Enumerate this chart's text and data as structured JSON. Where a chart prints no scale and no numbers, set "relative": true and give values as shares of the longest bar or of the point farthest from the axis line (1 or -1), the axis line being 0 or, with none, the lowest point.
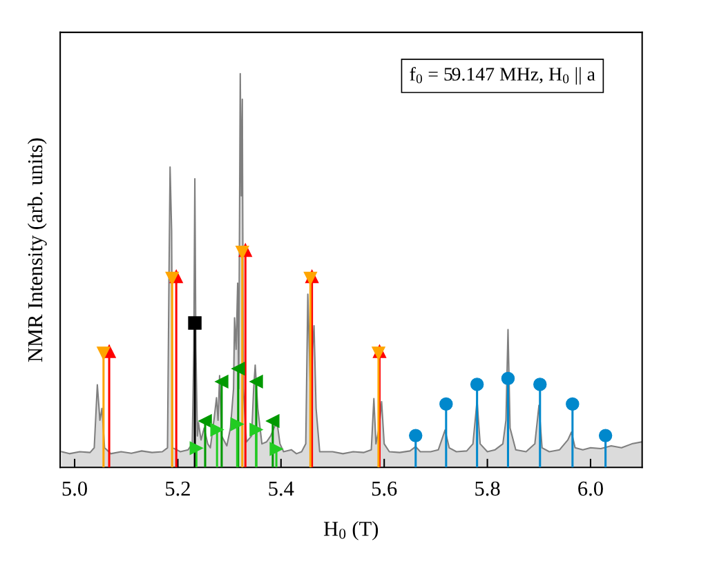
{
  "chart_data": {
    "type": "area",
    "xlabel": "H$_{0}$ (T)",
    "ylabel": "NMR Intensity (arb. units)",
    "annotations": [
      "f$_{0}$ = 59.147 MHz, H$_{0}$ || a"
    ],
    "relative": true,
    "xlim": [
      4.972,
      6.1
    ],
    "xticks": [
      {
        "value": 5.0,
        "label": "5.0"
      },
      5.2,
      5.4,
      5.6,
      5.8,
      {
        "value": 6.0,
        "label": "6.0"
      }
    ],
    "grid": false,
    "legend": false,
    "tick_labels": "x",
    "series": [
      {
        "color": "#7f7f7f",
        "marker": "none",
        "x": [
          4.975,
          4.99,
          5.01,
          5.03,
          5.038,
          5.044,
          5.049,
          5.053,
          5.058,
          5.07,
          5.09,
          5.11,
          5.13,
          5.15,
          5.17,
          5.18,
          5.183,
          5.185,
          5.188,
          5.19,
          5.205,
          5.22,
          5.228,
          5.231,
          5.233,
          5.235,
          5.238,
          5.24,
          5.245,
          5.251,
          5.258,
          5.263,
          5.27,
          5.275,
          5.278,
          5.281,
          5.285,
          5.295,
          5.302,
          5.308,
          5.31,
          5.313,
          5.316,
          5.318,
          5.321,
          5.323,
          5.325,
          5.327,
          5.333,
          5.343,
          5.347,
          5.35,
          5.355,
          5.363,
          5.372,
          5.38,
          5.392,
          5.398,
          5.405,
          5.42,
          5.43,
          5.44,
          5.448,
          5.452,
          5.455,
          5.458,
          5.461,
          5.464,
          5.468,
          5.475,
          5.5,
          5.52,
          5.54,
          5.56,
          5.575,
          5.58,
          5.584,
          5.59,
          5.595,
          5.6,
          5.61,
          5.63,
          5.65,
          5.661,
          5.67,
          5.69,
          5.705,
          5.718,
          5.726,
          5.74,
          5.76,
          5.772,
          5.78,
          5.786,
          5.8,
          5.815,
          5.83,
          5.836,
          5.84,
          5.844,
          5.855,
          5.875,
          5.892,
          5.9,
          5.906,
          5.92,
          5.94,
          5.956,
          5.963,
          5.97,
          5.985,
          6.0,
          6.02,
          6.04,
          6.06,
          6.08,
          6.1
        ],
        "values": [
          0.04,
          0.035,
          0.04,
          0.038,
          0.05,
          0.21,
          0.12,
          0.15,
          0.05,
          0.035,
          0.04,
          0.036,
          0.042,
          0.038,
          0.04,
          0.05,
          0.5,
          0.763,
          0.6,
          0.05,
          0.04,
          0.045,
          0.06,
          0.3,
          0.733,
          0.3,
          0.08,
          0.114,
          0.07,
          0.1,
          0.06,
          0.05,
          0.12,
          0.177,
          0.12,
          0.233,
          0.08,
          0.055,
          0.1,
          0.2,
          0.38,
          0.3,
          0.468,
          0.2,
          1.0,
          0.69,
          0.935,
          0.2,
          0.065,
          0.08,
          0.2,
          0.26,
          0.15,
          0.06,
          0.065,
          0.08,
          0.118,
          0.06,
          0.04,
          0.045,
          0.035,
          0.04,
          0.06,
          0.44,
          0.3,
          0.135,
          0.3,
          0.36,
          0.15,
          0.04,
          0.04,
          0.035,
          0.04,
          0.038,
          0.045,
          0.175,
          0.06,
          0.1,
          0.167,
          0.06,
          0.04,
          0.038,
          0.042,
          0.053,
          0.04,
          0.04,
          0.045,
          0.095,
          0.05,
          0.04,
          0.042,
          0.06,
          0.17,
          0.06,
          0.04,
          0.045,
          0.06,
          0.12,
          0.35,
          0.1,
          0.045,
          0.04,
          0.06,
          0.158,
          0.05,
          0.04,
          0.045,
          0.07,
          0.09,
          0.05,
          0.045,
          0.05,
          0.048,
          0.055,
          0.05,
          0.06,
          0.065
        ]
      },
      {
        "type": "lollipop",
        "color": "#ff0000",
        "marker": "triangle",
        "x": [
          5.067,
          5.197,
          5.331,
          5.46,
          5.591
        ],
        "values": [
          0.295,
          0.485,
          0.552,
          0.485,
          0.295
        ]
      },
      {
        "type": "lollipop",
        "color": "#ffa500",
        "marker": "triangle-down",
        "x": [
          5.056,
          5.189,
          5.325,
          5.457,
          5.589
        ],
        "values": [
          0.29,
          0.48,
          0.546,
          0.48,
          0.29
        ]
      },
      {
        "type": "lollipop",
        "color": "#000000",
        "marker": "square",
        "x": [
          5.233
        ],
        "values": [
          0.367
        ]
      },
      {
        "type": "lollipop",
        "color": "#009900",
        "marker": "triangle-left",
        "x": [
          5.253,
          5.285,
          5.317,
          5.352,
          5.384
        ],
        "values": [
          0.118,
          0.218,
          0.251,
          0.218,
          0.118
        ]
      },
      {
        "type": "lollipop",
        "color": "#22cc22",
        "marker": "triangle-right",
        "x": [
          5.236,
          5.276,
          5.315,
          5.352,
          5.391
        ],
        "values": [
          0.049,
          0.096,
          0.11,
          0.096,
          0.047
        ]
      },
      {
        "type": "lollipop",
        "color": "#0088cc",
        "marker": "circle",
        "x": [
          5.661,
          5.72,
          5.78,
          5.84,
          5.902,
          5.965,
          6.029
        ],
        "values": [
          0.081,
          0.161,
          0.211,
          0.226,
          0.211,
          0.161,
          0.081
        ]
      }
    ]
  }
}
